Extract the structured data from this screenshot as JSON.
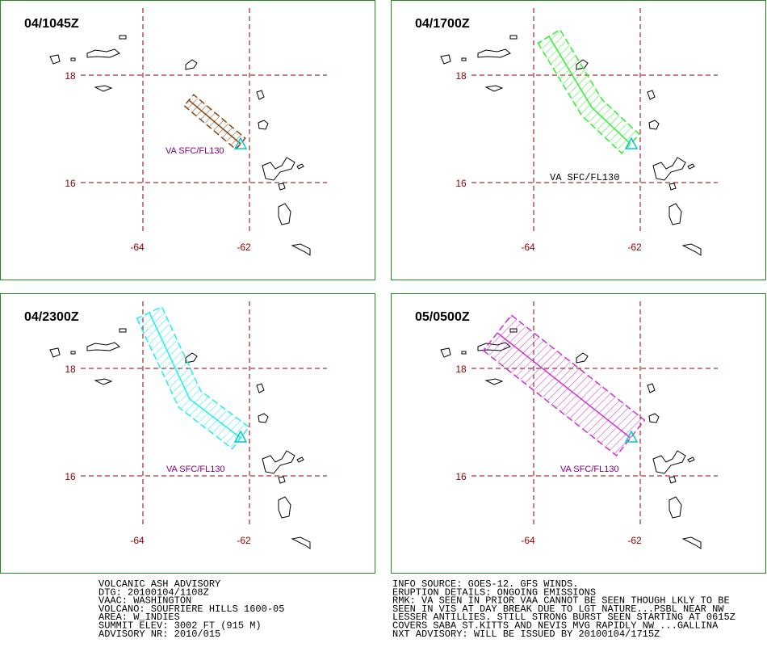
{
  "panels": [
    {
      "time": "04/1045Z",
      "lat_labels": [
        "18",
        "16"
      ],
      "lon_labels": [
        "-64",
        "-62"
      ],
      "plume_label": "VA SFC/FL130"
    },
    {
      "time": "04/1700Z",
      "lat_labels": [
        "18",
        "16"
      ],
      "lon_labels": [
        "-64",
        "-62"
      ],
      "plume_label": "VA SFC/FL130"
    },
    {
      "time": "04/2300Z",
      "lat_labels": [
        "18",
        "16"
      ],
      "lon_labels": [
        "-64",
        "-62"
      ],
      "plume_label": "VA SFC/FL130"
    },
    {
      "time": "05/0500Z",
      "lat_labels": [
        "18",
        "16"
      ],
      "lon_labels": [
        "-64",
        "-62"
      ],
      "plume_label": "VA SFC/FL130"
    }
  ],
  "advisory_left": [
    "VOLCANIC ASH ADVISORY",
    "DTG: 20100104/1108Z",
    "VAAC: WASHINGTON",
    "VOLCANO: SOUFRIERE HILLS 1600-05",
    "AREA: W_INDIES",
    "SUMMIT ELEV: 3002 FT (915 M)",
    "ADVISORY NR: 2010/015"
  ],
  "advisory_right": [
    "INFO SOURCE: GOES-12. GFS WINDS.",
    "ERUPTION DETAILS: ONGOING EMISSIONS",
    "RMK: VA SEEN IN PRIOR VAA CANNOT BE SEEN THOUGH LKLY TO BE",
    "SEEN IN VIS AT DAY BREAK DUE TO LGT NATURE...PSBL NEAR NW",
    "LESSER ANTILLIES. STILL STRONG BURST SEEN STARTING AT 0615Z",
    "COVERS SABA ST.KITTS AND NEVIS MVG RAPIDLY NW ...GALLINA",
    "NXT ADVISORY: WILL BE ISSUED BY 20100104/1715Z"
  ]
}
